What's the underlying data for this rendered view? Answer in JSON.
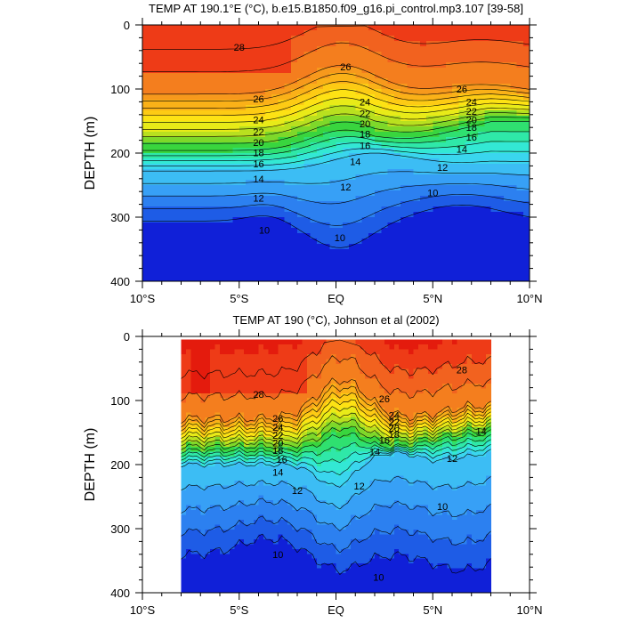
{
  "chart_data": [
    {
      "type": "contour",
      "title": "TEMP AT 190.1°E (°C), b.e15.B1850.f09_g16.pi_control.mp3.107 [39-58]",
      "xlabel": "",
      "ylabel": "DEPTH (m)",
      "xlim": [
        -10,
        10
      ],
      "ylim": [
        400,
        0
      ],
      "x_ticks": [
        -10,
        -5,
        0,
        5,
        10
      ],
      "x_tick_labels": [
        "10°S",
        "5°S",
        "EQ",
        "5°N",
        "10°N"
      ],
      "y_ticks": [
        0,
        100,
        200,
        300,
        400
      ],
      "y_tick_labels": [
        "0",
        "100",
        "200",
        "300",
        "400"
      ],
      "data_extent_x": [
        -10,
        10
      ],
      "contour_levels": [
        10,
        11,
        12,
        13,
        14,
        15,
        16,
        17,
        18,
        19,
        20,
        21,
        22,
        23,
        24,
        25,
        26,
        27,
        28
      ],
      "contour_labels": [
        {
          "text": "28",
          "x": -5.0,
          "y": 35
        },
        {
          "text": "26",
          "x": -4.0,
          "y": 115
        },
        {
          "text": "24",
          "x": -4.0,
          "y": 148
        },
        {
          "text": "22",
          "x": -4.0,
          "y": 167
        },
        {
          "text": "20",
          "x": -4.0,
          "y": 183
        },
        {
          "text": "18",
          "x": -4.0,
          "y": 199
        },
        {
          "text": "16",
          "x": -4.0,
          "y": 217
        },
        {
          "text": "14",
          "x": -4.0,
          "y": 240
        },
        {
          "text": "12",
          "x": -4.0,
          "y": 270
        },
        {
          "text": "10",
          "x": -3.7,
          "y": 320
        },
        {
          "text": "26",
          "x": 0.5,
          "y": 65
        },
        {
          "text": "24",
          "x": 1.5,
          "y": 120
        },
        {
          "text": "22",
          "x": 1.5,
          "y": 138
        },
        {
          "text": "20",
          "x": 1.5,
          "y": 154
        },
        {
          "text": "18",
          "x": 1.5,
          "y": 170
        },
        {
          "text": "16",
          "x": 1.5,
          "y": 188
        },
        {
          "text": "14",
          "x": 1.0,
          "y": 213
        },
        {
          "text": "12",
          "x": 0.5,
          "y": 253
        },
        {
          "text": "10",
          "x": 0.2,
          "y": 332
        },
        {
          "text": "26",
          "x": 6.5,
          "y": 100
        },
        {
          "text": "24",
          "x": 7.0,
          "y": 120
        },
        {
          "text": "22",
          "x": 7.0,
          "y": 135
        },
        {
          "text": "20",
          "x": 7.0,
          "y": 148
        },
        {
          "text": "18",
          "x": 7.0,
          "y": 160
        },
        {
          "text": "16",
          "x": 7.0,
          "y": 175
        },
        {
          "text": "14",
          "x": 6.5,
          "y": 194
        },
        {
          "text": "12",
          "x": 5.5,
          "y": 222
        },
        {
          "text": "10",
          "x": 5.0,
          "y": 262
        }
      ]
    },
    {
      "type": "contour",
      "title": "TEMP AT 190 (°C), Johnson et al (2002)",
      "xlabel": "",
      "ylabel": "DEPTH (m)",
      "xlim": [
        -10,
        10
      ],
      "ylim": [
        400,
        0
      ],
      "x_ticks": [
        -10,
        -5,
        0,
        5,
        10
      ],
      "x_tick_labels": [
        "10°S",
        "5°S",
        "EQ",
        "5°N",
        "10°N"
      ],
      "y_ticks": [
        0,
        100,
        200,
        300,
        400
      ],
      "y_tick_labels": [
        "0",
        "100",
        "200",
        "300",
        "400"
      ],
      "data_extent_x": [
        -8,
        8
      ],
      "contour_levels": [
        10,
        11,
        12,
        13,
        14,
        15,
        16,
        17,
        18,
        19,
        20,
        21,
        22,
        23,
        24,
        25,
        26,
        27,
        28
      ],
      "contour_labels": [
        {
          "text": "28",
          "x": -4.0,
          "y": 90
        },
        {
          "text": "26",
          "x": -3.0,
          "y": 128
        },
        {
          "text": "24",
          "x": -3.0,
          "y": 142
        },
        {
          "text": "22",
          "x": -3.0,
          "y": 154
        },
        {
          "text": "20",
          "x": -3.0,
          "y": 166
        },
        {
          "text": "18",
          "x": -3.0,
          "y": 178
        },
        {
          "text": "16",
          "x": -2.8,
          "y": 192
        },
        {
          "text": "14",
          "x": -3.0,
          "y": 212
        },
        {
          "text": "12",
          "x": -2.0,
          "y": 240
        },
        {
          "text": "10",
          "x": -3.0,
          "y": 340
        },
        {
          "text": "26",
          "x": 2.5,
          "y": 97
        },
        {
          "text": "24",
          "x": 3.0,
          "y": 123
        },
        {
          "text": "22",
          "x": 3.0,
          "y": 133
        },
        {
          "text": "20",
          "x": 3.0,
          "y": 143
        },
        {
          "text": "18",
          "x": 3.0,
          "y": 153
        },
        {
          "text": "16",
          "x": 2.5,
          "y": 162
        },
        {
          "text": "14",
          "x": 2.0,
          "y": 180
        },
        {
          "text": "12",
          "x": 1.2,
          "y": 233
        },
        {
          "text": "10",
          "x": 2.2,
          "y": 376
        },
        {
          "text": "28",
          "x": 6.5,
          "y": 52
        },
        {
          "text": "14",
          "x": 7.5,
          "y": 148
        },
        {
          "text": "12",
          "x": 6.0,
          "y": 190
        },
        {
          "text": "10",
          "x": 5.5,
          "y": 265
        }
      ]
    }
  ]
}
